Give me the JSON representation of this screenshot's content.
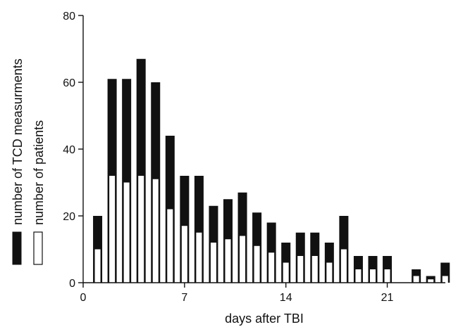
{
  "chart_data": {
    "type": "bar",
    "xlabel": "days after TBI",
    "ylabel": "",
    "xlim": [
      0,
      25
    ],
    "ylim": [
      0,
      80
    ],
    "x_ticks": [
      0,
      7,
      14,
      21
    ],
    "y_ticks": [
      0,
      20,
      40,
      60,
      80
    ],
    "grid": false,
    "legend_position": "left, rotated vertical",
    "x": [
      1,
      2,
      3,
      4,
      5,
      6,
      7,
      8,
      9,
      10,
      11,
      12,
      13,
      14,
      15,
      16,
      17,
      18,
      19,
      20,
      21,
      23,
      24,
      25
    ],
    "series": [
      {
        "name": "number of TCD measurments",
        "color": "#111111",
        "values": [
          20,
          61,
          61,
          67,
          60,
          44,
          32,
          32,
          23,
          25,
          27,
          21,
          18,
          12,
          15,
          15,
          12,
          20,
          8,
          8,
          8,
          4,
          2,
          6
        ]
      },
      {
        "name": "number of patients",
        "color": "#ffffff",
        "values": [
          10,
          32,
          30,
          32,
          31,
          22,
          17,
          15,
          12,
          13,
          14,
          11,
          9,
          6,
          8,
          8,
          6,
          10,
          4,
          4,
          4,
          2,
          1,
          2
        ]
      }
    ]
  }
}
